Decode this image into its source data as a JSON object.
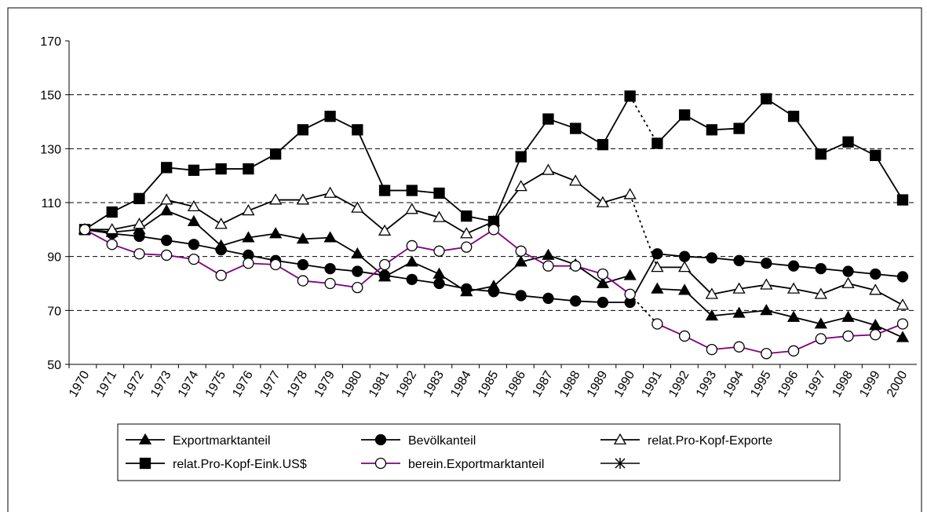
{
  "chart_data": {
    "type": "line",
    "categories": [
      "1970",
      "1971",
      "1972",
      "1973",
      "1974",
      "1975",
      "1976",
      "1977",
      "1978",
      "1979",
      "1980",
      "1981",
      "1982",
      "1983",
      "1984",
      "1985",
      "1986",
      "1987",
      "1988",
      "1989",
      "1990",
      "1991",
      "1992",
      "1993",
      "1994",
      "1995",
      "1996",
      "1997",
      "1998",
      "1999",
      "2000"
    ],
    "ylim": [
      50,
      170
    ],
    "yticks": [
      50,
      70,
      90,
      110,
      130,
      150,
      170
    ],
    "grid": true,
    "series": [
      {
        "name": "Exportmarktanteil",
        "color": "#000000",
        "marker": "triangle",
        "marker_fill": "#000000",
        "dashed_after": 20,
        "values": [
          100,
          99,
          100,
          107,
          103,
          94,
          97,
          98.5,
          96.5,
          97,
          91,
          82.5,
          88,
          83.5,
          77,
          79,
          88,
          90.5,
          87,
          80,
          83,
          78,
          77.5,
          68,
          69,
          70,
          67.5,
          65,
          67.5,
          64.5,
          60
        ]
      },
      {
        "name": "Bevölkanteil",
        "color": "#000000",
        "marker": "circle",
        "marker_fill": "#000000",
        "values": [
          100,
          98.5,
          97.5,
          96,
          94.5,
          92.5,
          90.5,
          88.5,
          87,
          85.5,
          84.5,
          83,
          81.5,
          80,
          78,
          77,
          75.5,
          74.5,
          73.5,
          73,
          73,
          91,
          90,
          89.5,
          88.5,
          87.5,
          86.5,
          85.5,
          84.5,
          83.5,
          82.5
        ]
      },
      {
        "name": "relat.Pro-Kopf-Exporte",
        "color": "#000000",
        "marker": "triangle",
        "marker_fill": "#ffffff",
        "dashed_after": 20,
        "values": [
          100,
          100,
          102,
          111,
          108.5,
          102,
          107,
          111,
          111,
          113.5,
          108,
          99.5,
          107.5,
          104.5,
          98.5,
          103,
          116,
          122,
          118,
          110,
          113,
          86,
          86,
          76,
          78,
          79.5,
          78,
          76,
          80,
          77.5,
          72
        ]
      },
      {
        "name": "relat.Pro-Kopf-Eink.US$",
        "color": "#000000",
        "marker": "square",
        "marker_fill": "#000000",
        "dashed_after": 20,
        "values": [
          100,
          106.5,
          111.5,
          123,
          122,
          122.5,
          122.5,
          128,
          137,
          142,
          137,
          114.5,
          114.5,
          113.5,
          105,
          103,
          127,
          141,
          137.5,
          131.5,
          149.5,
          132,
          142.5,
          137,
          137.5,
          148.5,
          142,
          128,
          132.5,
          127.5,
          111
        ]
      },
      {
        "name": "berein.Exportmarktanteil",
        "color": "#800080",
        "marker": "circle",
        "marker_fill": "#ffffff",
        "dashed_after": 20,
        "values": [
          100,
          94.5,
          91,
          90.5,
          89,
          83,
          87.5,
          87,
          81,
          80,
          78.5,
          87,
          94,
          92,
          93.5,
          100,
          92,
          86.5,
          86.5,
          83.5,
          76,
          65,
          60.5,
          55.5,
          56.5,
          54,
          55,
          59.5,
          60.5,
          61,
          65
        ]
      }
    ]
  }
}
